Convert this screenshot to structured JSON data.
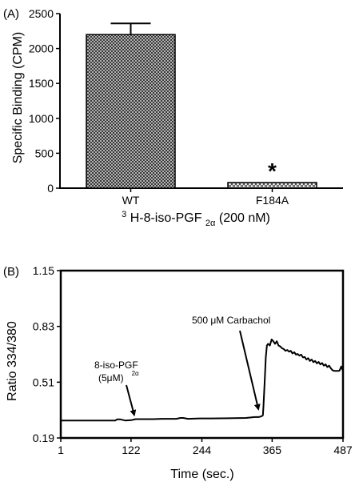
{
  "chart_data": [
    {
      "type": "bar",
      "panel_label": "(A)",
      "categories": [
        "WT",
        "F184A"
      ],
      "values": [
        2200,
        80
      ],
      "errors": [
        160,
        null
      ],
      "annotations": [
        {
          "category": "F184A",
          "text": "*"
        }
      ],
      "ylabel": "Specific Binding (CPM)",
      "xlabel": {
        "pre": "H-8-iso-PGF",
        "sup": "3",
        "sub": "2α",
        "post": " (200 nM)"
      },
      "ylim": [
        0,
        2500
      ],
      "yticks": [
        0,
        500,
        1000,
        1500,
        2000,
        2500
      ],
      "fill": "crosshatch"
    },
    {
      "type": "line",
      "panel_label": "(B)",
      "xlabel": "Time (sec.)",
      "ylabel": "Ratio 334/380",
      "xlim": [
        1,
        487
      ],
      "ylim": [
        0.19,
        1.15
      ],
      "xticks": [
        1,
        122,
        244,
        365,
        487
      ],
      "yticks": [
        0.19,
        0.51,
        0.83,
        1.15
      ],
      "ytick_labels": [
        "0.19",
        "0.51",
        "0.83",
        "1.15"
      ],
      "series": [
        {
          "x": [
            1,
            95,
            98,
            103,
            112,
            122,
            130,
            140,
            150,
            160,
            175,
            200,
            207,
            212,
            220,
            240,
            260,
            290,
            320,
            335,
            342,
            347,
            349,
            350,
            352,
            354,
            356,
            358,
            361,
            364,
            367,
            370,
            373,
            376,
            379,
            382,
            385,
            388,
            391,
            394,
            397,
            400,
            403,
            406,
            409,
            412,
            415,
            418,
            421,
            424,
            427,
            430,
            433,
            436,
            439,
            442,
            445,
            448,
            451,
            454,
            457,
            460,
            463,
            466,
            469,
            472,
            475,
            478,
            481,
            484,
            487
          ],
          "y": [
            0.29,
            0.29,
            0.297,
            0.297,
            0.29,
            0.292,
            0.298,
            0.298,
            0.298,
            0.298,
            0.3,
            0.3,
            0.305,
            0.305,
            0.3,
            0.302,
            0.302,
            0.303,
            0.305,
            0.31,
            0.31,
            0.315,
            0.32,
            0.37,
            0.5,
            0.65,
            0.72,
            0.73,
            0.72,
            0.755,
            0.745,
            0.73,
            0.745,
            0.72,
            0.715,
            0.705,
            0.7,
            0.69,
            0.695,
            0.685,
            0.69,
            0.675,
            0.682,
            0.668,
            0.672,
            0.662,
            0.668,
            0.652,
            0.655,
            0.64,
            0.648,
            0.632,
            0.64,
            0.625,
            0.632,
            0.618,
            0.626,
            0.612,
            0.62,
            0.605,
            0.612,
            0.597,
            0.605,
            0.59,
            0.578,
            0.575,
            0.575,
            0.575,
            0.576,
            0.6,
            0.575
          ]
        }
      ],
      "annotations": [
        {
          "lines": [
            "8-iso-PGF",
            "(5μM)"
          ],
          "sub": "2α",
          "arrow_to": [
            122,
            0.295
          ]
        },
        {
          "lines": [
            "500 μM  Carbachol"
          ],
          "arrow_to": [
            344,
            0.31
          ]
        }
      ]
    }
  ]
}
